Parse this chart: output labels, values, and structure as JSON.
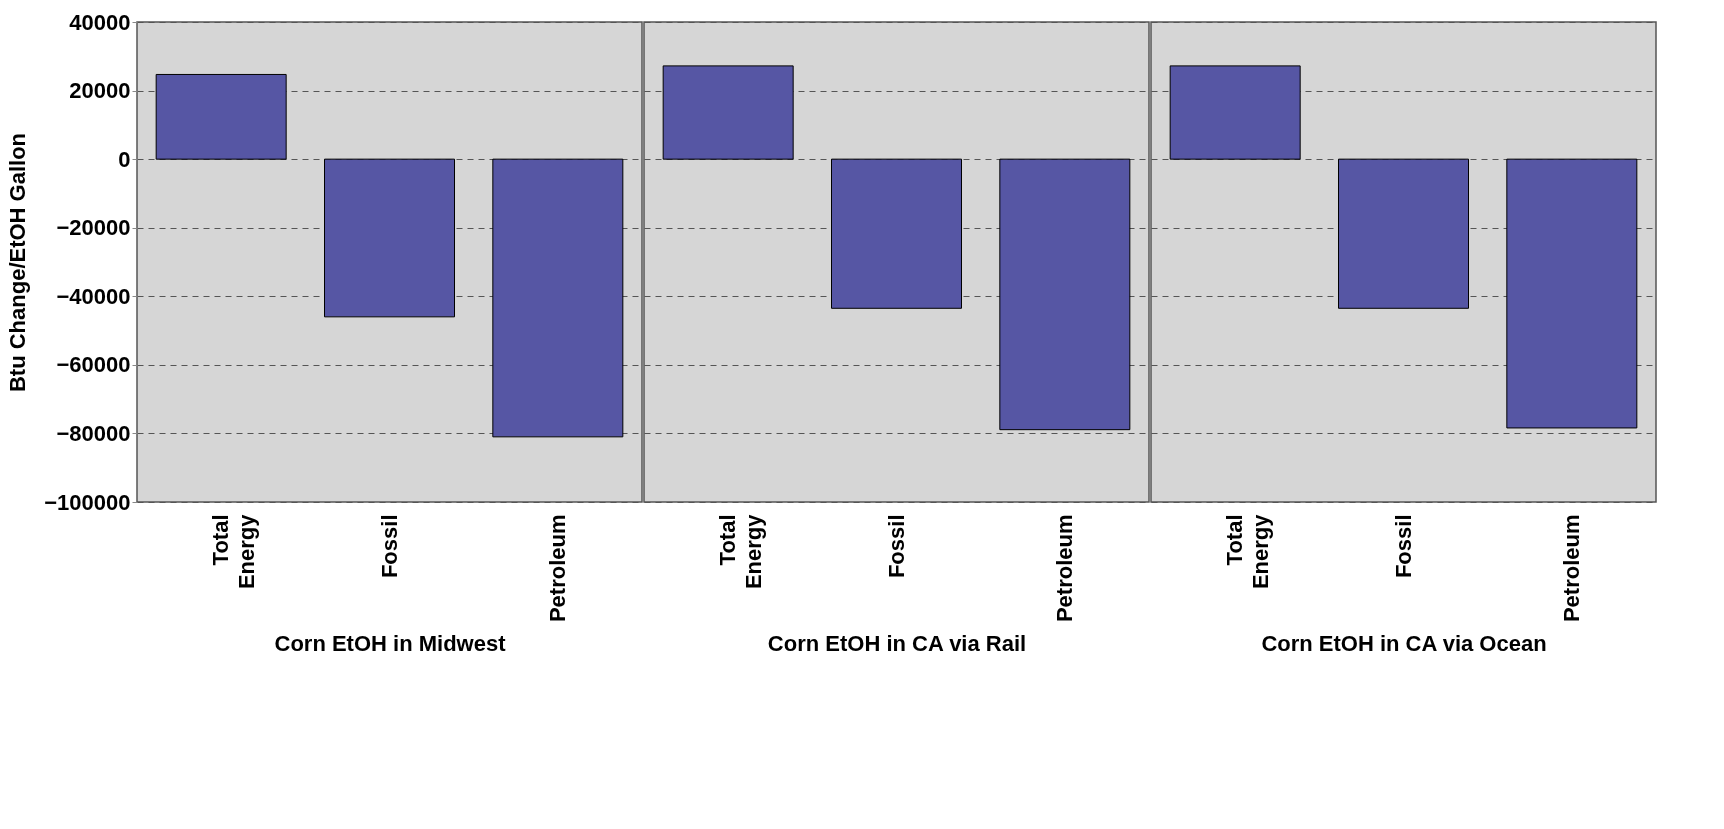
{
  "chart_data": [
    {
      "type": "bar",
      "categories": [
        "Total Energy",
        "Fossil",
        "Petroleum"
      ],
      "values": [
        24700,
        -46000,
        -81000
      ],
      "color": "#5656a4",
      "xlabel": "Corn EtOH in Midwest",
      "ylabel": "Btu Change/EtOH Gallon",
      "ylim": [
        -100000,
        40000
      ],
      "yticks": [
        -100000,
        -80000,
        -60000,
        -40000,
        -20000,
        0,
        20000,
        40000
      ],
      "grid": "y"
    },
    {
      "type": "bar",
      "categories": [
        "Total Energy",
        "Fossil",
        "Petroleum"
      ],
      "values": [
        27200,
        -43500,
        -78900
      ],
      "color": "#5656a4",
      "xlabel": "Corn EtOH in CA via Rail",
      "ylim": [
        -100000,
        40000
      ],
      "yticks": [
        -100000,
        -80000,
        -60000,
        -40000,
        -20000,
        0,
        20000,
        40000
      ],
      "grid": "y",
      "tick_labels": "x"
    },
    {
      "type": "bar",
      "categories": [
        "Total Energy",
        "Fossil",
        "Petroleum"
      ],
      "values": [
        27200,
        -43500,
        -78400
      ],
      "color": "#5656a4",
      "xlabel": "Corn EtOH in CA via Ocean",
      "ylim": [
        -100000,
        40000
      ],
      "yticks": [
        -100000,
        -80000,
        -60000,
        -40000,
        -20000,
        0,
        20000,
        40000
      ],
      "grid": "y",
      "tick_labels": "x"
    }
  ]
}
